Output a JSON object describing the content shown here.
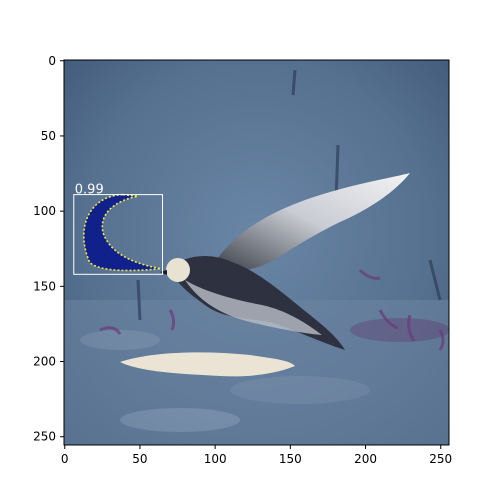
{
  "chart_data": {
    "type": "image",
    "description_visible": "detection result overlay on image",
    "x_ticks": [
      0,
      50,
      100,
      150,
      200,
      250
    ],
    "y_ticks": [
      0,
      50,
      100,
      150,
      200,
      250
    ],
    "xlim": [
      -0.5,
      255.5
    ],
    "ylim": [
      255.5,
      -0.5
    ],
    "image_size": [
      256,
      256
    ],
    "detections": [
      {
        "score_label": "0.99",
        "box": {
          "x0": 6,
          "y0": 89,
          "x1": 65,
          "y1": 142
        },
        "mask_color": "#0a1a8c",
        "box_color": "#ffffff"
      }
    ],
    "colors": {
      "background": "#5a7596",
      "mask": "#0a1a8c",
      "box": "#ffffff",
      "mask_outline": "#f2e84a"
    }
  }
}
